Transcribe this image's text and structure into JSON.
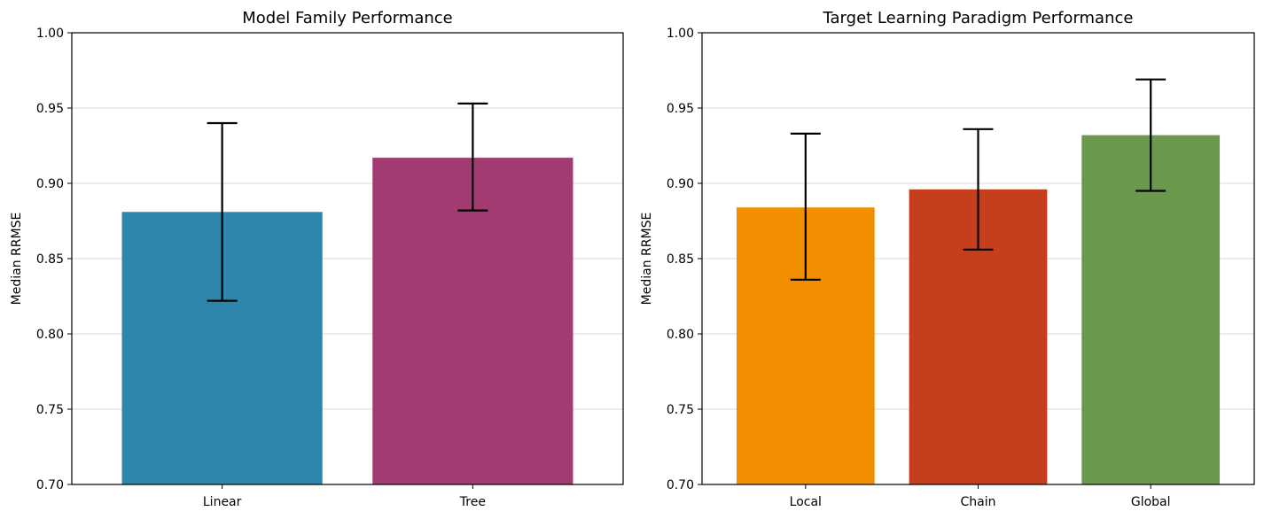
{
  "chart_data": [
    {
      "type": "bar",
      "title": "Model Family Performance",
      "xlabel": "",
      "ylabel": "Median RRMSE",
      "ylim": [
        0.7,
        1.0
      ],
      "yticks": [
        "0.70",
        "0.75",
        "0.80",
        "0.85",
        "0.90",
        "0.95",
        "1.00"
      ],
      "grid": "y",
      "categories": [
        "Linear",
        "Tree"
      ],
      "values": [
        0.881,
        0.917
      ],
      "error_low": [
        0.822,
        0.882
      ],
      "error_high": [
        0.94,
        0.953
      ],
      "colors": [
        "#2e86ab",
        "#a23b72"
      ]
    },
    {
      "type": "bar",
      "title": "Target Learning Paradigm Performance",
      "xlabel": "",
      "ylabel": "Median RRMSE",
      "ylim": [
        0.7,
        1.0
      ],
      "yticks": [
        "0.70",
        "0.75",
        "0.80",
        "0.85",
        "0.90",
        "0.95",
        "1.00"
      ],
      "grid": "y",
      "categories": [
        "Local",
        "Chain",
        "Global"
      ],
      "values": [
        0.884,
        0.896,
        0.932
      ],
      "error_low": [
        0.836,
        0.856,
        0.895
      ],
      "error_high": [
        0.933,
        0.936,
        0.969
      ],
      "colors": [
        "#f18f01",
        "#c73e1d",
        "#6a994e"
      ]
    }
  ]
}
